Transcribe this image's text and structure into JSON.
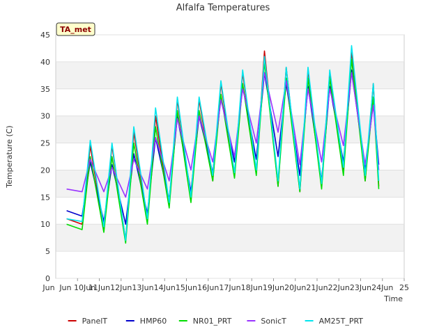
{
  "chart_data": {
    "type": "line",
    "title": "Alfalfa Temperatures",
    "xlabel": "Time",
    "ylabel": "Temperature (C)",
    "badge": "TA_met",
    "ylim": [
      0,
      45
    ],
    "yticks": [
      0,
      5,
      10,
      15,
      20,
      25,
      30,
      35,
      40,
      45
    ],
    "xlim": [
      "2024-06-09",
      "2024-06-25"
    ],
    "xticks": [
      "Jun 10Jun",
      "11Jun",
      "12Jun",
      "13Jun",
      "14Jun",
      "15Jun",
      "16Jun",
      "17Jun",
      "18Jun",
      "19Jun",
      "20Jun",
      "21Jun",
      "22Jun",
      "23Jun",
      "24Jun",
      "25"
    ],
    "xtick_dates": [
      "2024-06-10",
      "2024-06-11",
      "2024-06-12",
      "2024-06-13",
      "2024-06-14",
      "2024-06-15",
      "2024-06-16",
      "2024-06-17",
      "2024-06-18",
      "2024-06-19",
      "2024-06-20",
      "2024-06-21",
      "2024-06-22",
      "2024-06-23",
      "2024-06-24",
      "2024-06-25"
    ],
    "x_first_label": "Jun",
    "grid": true,
    "legend_position": "bottom",
    "series": [
      {
        "name": "PanelT",
        "color": "#cc0000",
        "x": [
          "2024-06-09T12:00",
          "2024-06-10T05:00",
          "2024-06-10T14:00",
          "2024-06-11T05:00",
          "2024-06-11T14:00",
          "2024-06-12T05:00",
          "2024-06-12T14:00",
          "2024-06-13T05:00",
          "2024-06-13T14:00",
          "2024-06-14T05:00",
          "2024-06-14T14:00",
          "2024-06-15T05:00",
          "2024-06-15T14:00",
          "2024-06-16T05:00",
          "2024-06-16T14:00",
          "2024-06-17T05:00",
          "2024-06-17T14:00",
          "2024-06-18T05:00",
          "2024-06-18T14:00",
          "2024-06-19T05:00",
          "2024-06-19T14:00",
          "2024-06-20T05:00",
          "2024-06-20T14:00",
          "2024-06-21T05:00",
          "2024-06-21T14:00",
          "2024-06-22T05:00",
          "2024-06-22T14:00",
          "2024-06-23T05:00",
          "2024-06-23T14:00",
          "2024-06-23T20:00"
        ],
        "y": [
          11,
          10,
          24.5,
          9,
          24.5,
          7,
          27,
          10.5,
          30,
          13.5,
          33,
          14.5,
          33,
          18,
          36,
          19,
          38,
          19.5,
          42,
          17,
          39,
          16,
          38.5,
          17,
          38,
          20,
          42,
          18,
          36,
          17
        ]
      },
      {
        "name": "HMP60",
        "color": "#0000cc",
        "x": [
          "2024-06-09T12:00",
          "2024-06-10T05:00",
          "2024-06-10T14:00",
          "2024-06-11T05:00",
          "2024-06-11T14:00",
          "2024-06-12T05:00",
          "2024-06-12T14:00",
          "2024-06-13T05:00",
          "2024-06-13T14:00",
          "2024-06-14T05:00",
          "2024-06-14T14:00",
          "2024-06-15T05:00",
          "2024-06-15T14:00",
          "2024-06-16T05:00",
          "2024-06-16T14:00",
          "2024-06-17T05:00",
          "2024-06-17T14:00",
          "2024-06-18T05:00",
          "2024-06-18T14:00",
          "2024-06-19T05:00",
          "2024-06-19T14:00",
          "2024-06-20T05:00",
          "2024-06-20T14:00",
          "2024-06-21T05:00",
          "2024-06-21T14:00",
          "2024-06-22T05:00",
          "2024-06-22T14:00",
          "2024-06-23T05:00",
          "2024-06-23T14:00",
          "2024-06-23T20:00"
        ],
        "y": [
          12.5,
          11.5,
          21.5,
          10.5,
          21,
          10,
          23,
          12,
          26,
          14.5,
          30,
          16,
          30,
          19.5,
          33.5,
          21.5,
          35.5,
          22,
          38,
          22.5,
          36,
          19,
          35.5,
          18,
          35.5,
          21.5,
          38.5,
          20,
          32.5,
          21
        ]
      },
      {
        "name": "NR01_PRT",
        "color": "#00dd00",
        "x": [
          "2024-06-09T12:00",
          "2024-06-10T05:00",
          "2024-06-10T14:00",
          "2024-06-11T05:00",
          "2024-06-11T14:00",
          "2024-06-12T05:00",
          "2024-06-12T14:00",
          "2024-06-13T05:00",
          "2024-06-13T14:00",
          "2024-06-14T05:00",
          "2024-06-14T14:00",
          "2024-06-15T05:00",
          "2024-06-15T14:00",
          "2024-06-16T05:00",
          "2024-06-16T14:00",
          "2024-06-17T05:00",
          "2024-06-17T14:00",
          "2024-06-18T05:00",
          "2024-06-18T14:00",
          "2024-06-19T05:00",
          "2024-06-19T14:00",
          "2024-06-20T05:00",
          "2024-06-20T14:00",
          "2024-06-21T05:00",
          "2024-06-21T14:00",
          "2024-06-22T05:00",
          "2024-06-22T14:00",
          "2024-06-23T05:00",
          "2024-06-23T14:00",
          "2024-06-23T20:00"
        ],
        "y": [
          10,
          9,
          22.5,
          8.5,
          22.5,
          6.5,
          25,
          10,
          28,
          13,
          31,
          14,
          31,
          18,
          34,
          18.5,
          36,
          19,
          40,
          17,
          37,
          16,
          37,
          16.5,
          37,
          19,
          40.5,
          18,
          33.5,
          16.5
        ]
      },
      {
        "name": "SonicT",
        "color": "#9933ff",
        "x": [
          "2024-06-09T12:00",
          "2024-06-10T05:00",
          "2024-06-10T14:00",
          "2024-06-11T05:00",
          "2024-06-11T14:00",
          "2024-06-12T05:00",
          "2024-06-12T14:00",
          "2024-06-13T05:00",
          "2024-06-13T14:00",
          "2024-06-14T05:00",
          "2024-06-14T14:00",
          "2024-06-15T05:00",
          "2024-06-15T14:00",
          "2024-06-16T05:00",
          "2024-06-16T14:00",
          "2024-06-17T05:00",
          "2024-06-17T14:00",
          "2024-06-18T05:00",
          "2024-06-18T14:00",
          "2024-06-19T05:00",
          "2024-06-19T14:00",
          "2024-06-20T05:00",
          "2024-06-20T14:00",
          "2024-06-21T05:00",
          "2024-06-21T14:00",
          "2024-06-22T05:00",
          "2024-06-22T14:00",
          "2024-06-23T05:00",
          "2024-06-23T14:00",
          "2024-06-23T20:00"
        ],
        "y": [
          16.5,
          16,
          22,
          16,
          20.5,
          15,
          22,
          16.5,
          26,
          18,
          29.5,
          20,
          30,
          21.5,
          33,
          22.5,
          35,
          25,
          38,
          27,
          36.5,
          21,
          35,
          21.5,
          35,
          24.5,
          38,
          21,
          32,
          20
        ]
      },
      {
        "name": "AM25T_PRT",
        "color": "#00e5ee",
        "x": [
          "2024-06-09T12:00",
          "2024-06-10T05:00",
          "2024-06-10T14:00",
          "2024-06-11T05:00",
          "2024-06-11T14:00",
          "2024-06-12T05:00",
          "2024-06-12T14:00",
          "2024-06-13T05:00",
          "2024-06-13T14:00",
          "2024-06-14T05:00",
          "2024-06-14T14:00",
          "2024-06-15T05:00",
          "2024-06-15T14:00",
          "2024-06-16T05:00",
          "2024-06-16T14:00",
          "2024-06-17T05:00",
          "2024-06-17T14:00",
          "2024-06-18T05:00",
          "2024-06-18T14:00",
          "2024-06-19T05:00",
          "2024-06-19T14:00",
          "2024-06-20T05:00",
          "2024-06-20T14:00",
          "2024-06-21T05:00",
          "2024-06-21T14:00",
          "2024-06-22T05:00",
          "2024-06-22T14:00",
          "2024-06-23T05:00",
          "2024-06-23T14:00",
          "2024-06-23T20:00"
        ],
        "y": [
          11,
          10.5,
          25.5,
          9.5,
          25,
          7,
          28,
          11,
          31.5,
          14,
          33.5,
          15,
          33.5,
          19,
          36.5,
          19.5,
          38.5,
          20,
          41,
          18,
          39,
          16.5,
          39,
          17.5,
          38.5,
          20.5,
          43,
          19,
          36,
          18
        ]
      }
    ]
  }
}
